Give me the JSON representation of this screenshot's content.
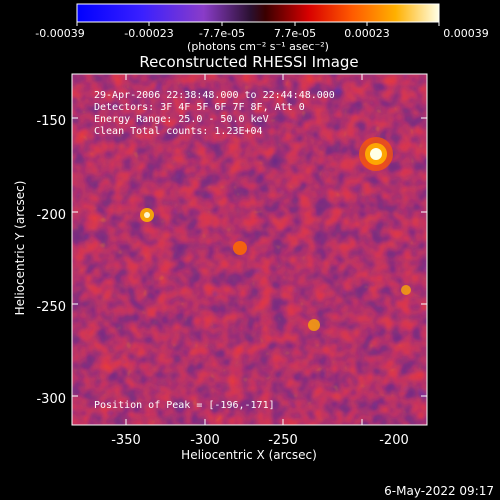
{
  "title": "Reconstructed RHESSI Image",
  "colorbar": {
    "tick_labels": [
      "-0.00039",
      "-0.00023",
      "-7.7e-05",
      "7.7e-05",
      "0.00023",
      "0.00039"
    ],
    "unit_label": "(photons cm⁻² s⁻¹ asec⁻²)"
  },
  "annotations": {
    "time_range": "29-Apr-2006 22:38:48.000 to 22:44:48.000",
    "detectors": "Detectors: 3F 4F 5F 6F 7F 8F, Att 0",
    "energy_range": "Energy Range: 25.0 - 50.0 keV",
    "clean_counts": "Clean      Total counts: 1.23E+04",
    "peak_position": "Position of Peak = [-196,-171]"
  },
  "x_axis": {
    "label": "Heliocentric X (arcsec)",
    "tick_labels": [
      "-350",
      "-300",
      "-250",
      "-200"
    ]
  },
  "y_axis": {
    "label": "Heliocentric Y (arcsec)",
    "tick_labels": [
      "-150",
      "-200",
      "-250",
      "-300"
    ]
  },
  "footer_date": "6-May-2022 09:17",
  "colors": {
    "background": "#000000",
    "foreground": "#ffffff"
  }
}
